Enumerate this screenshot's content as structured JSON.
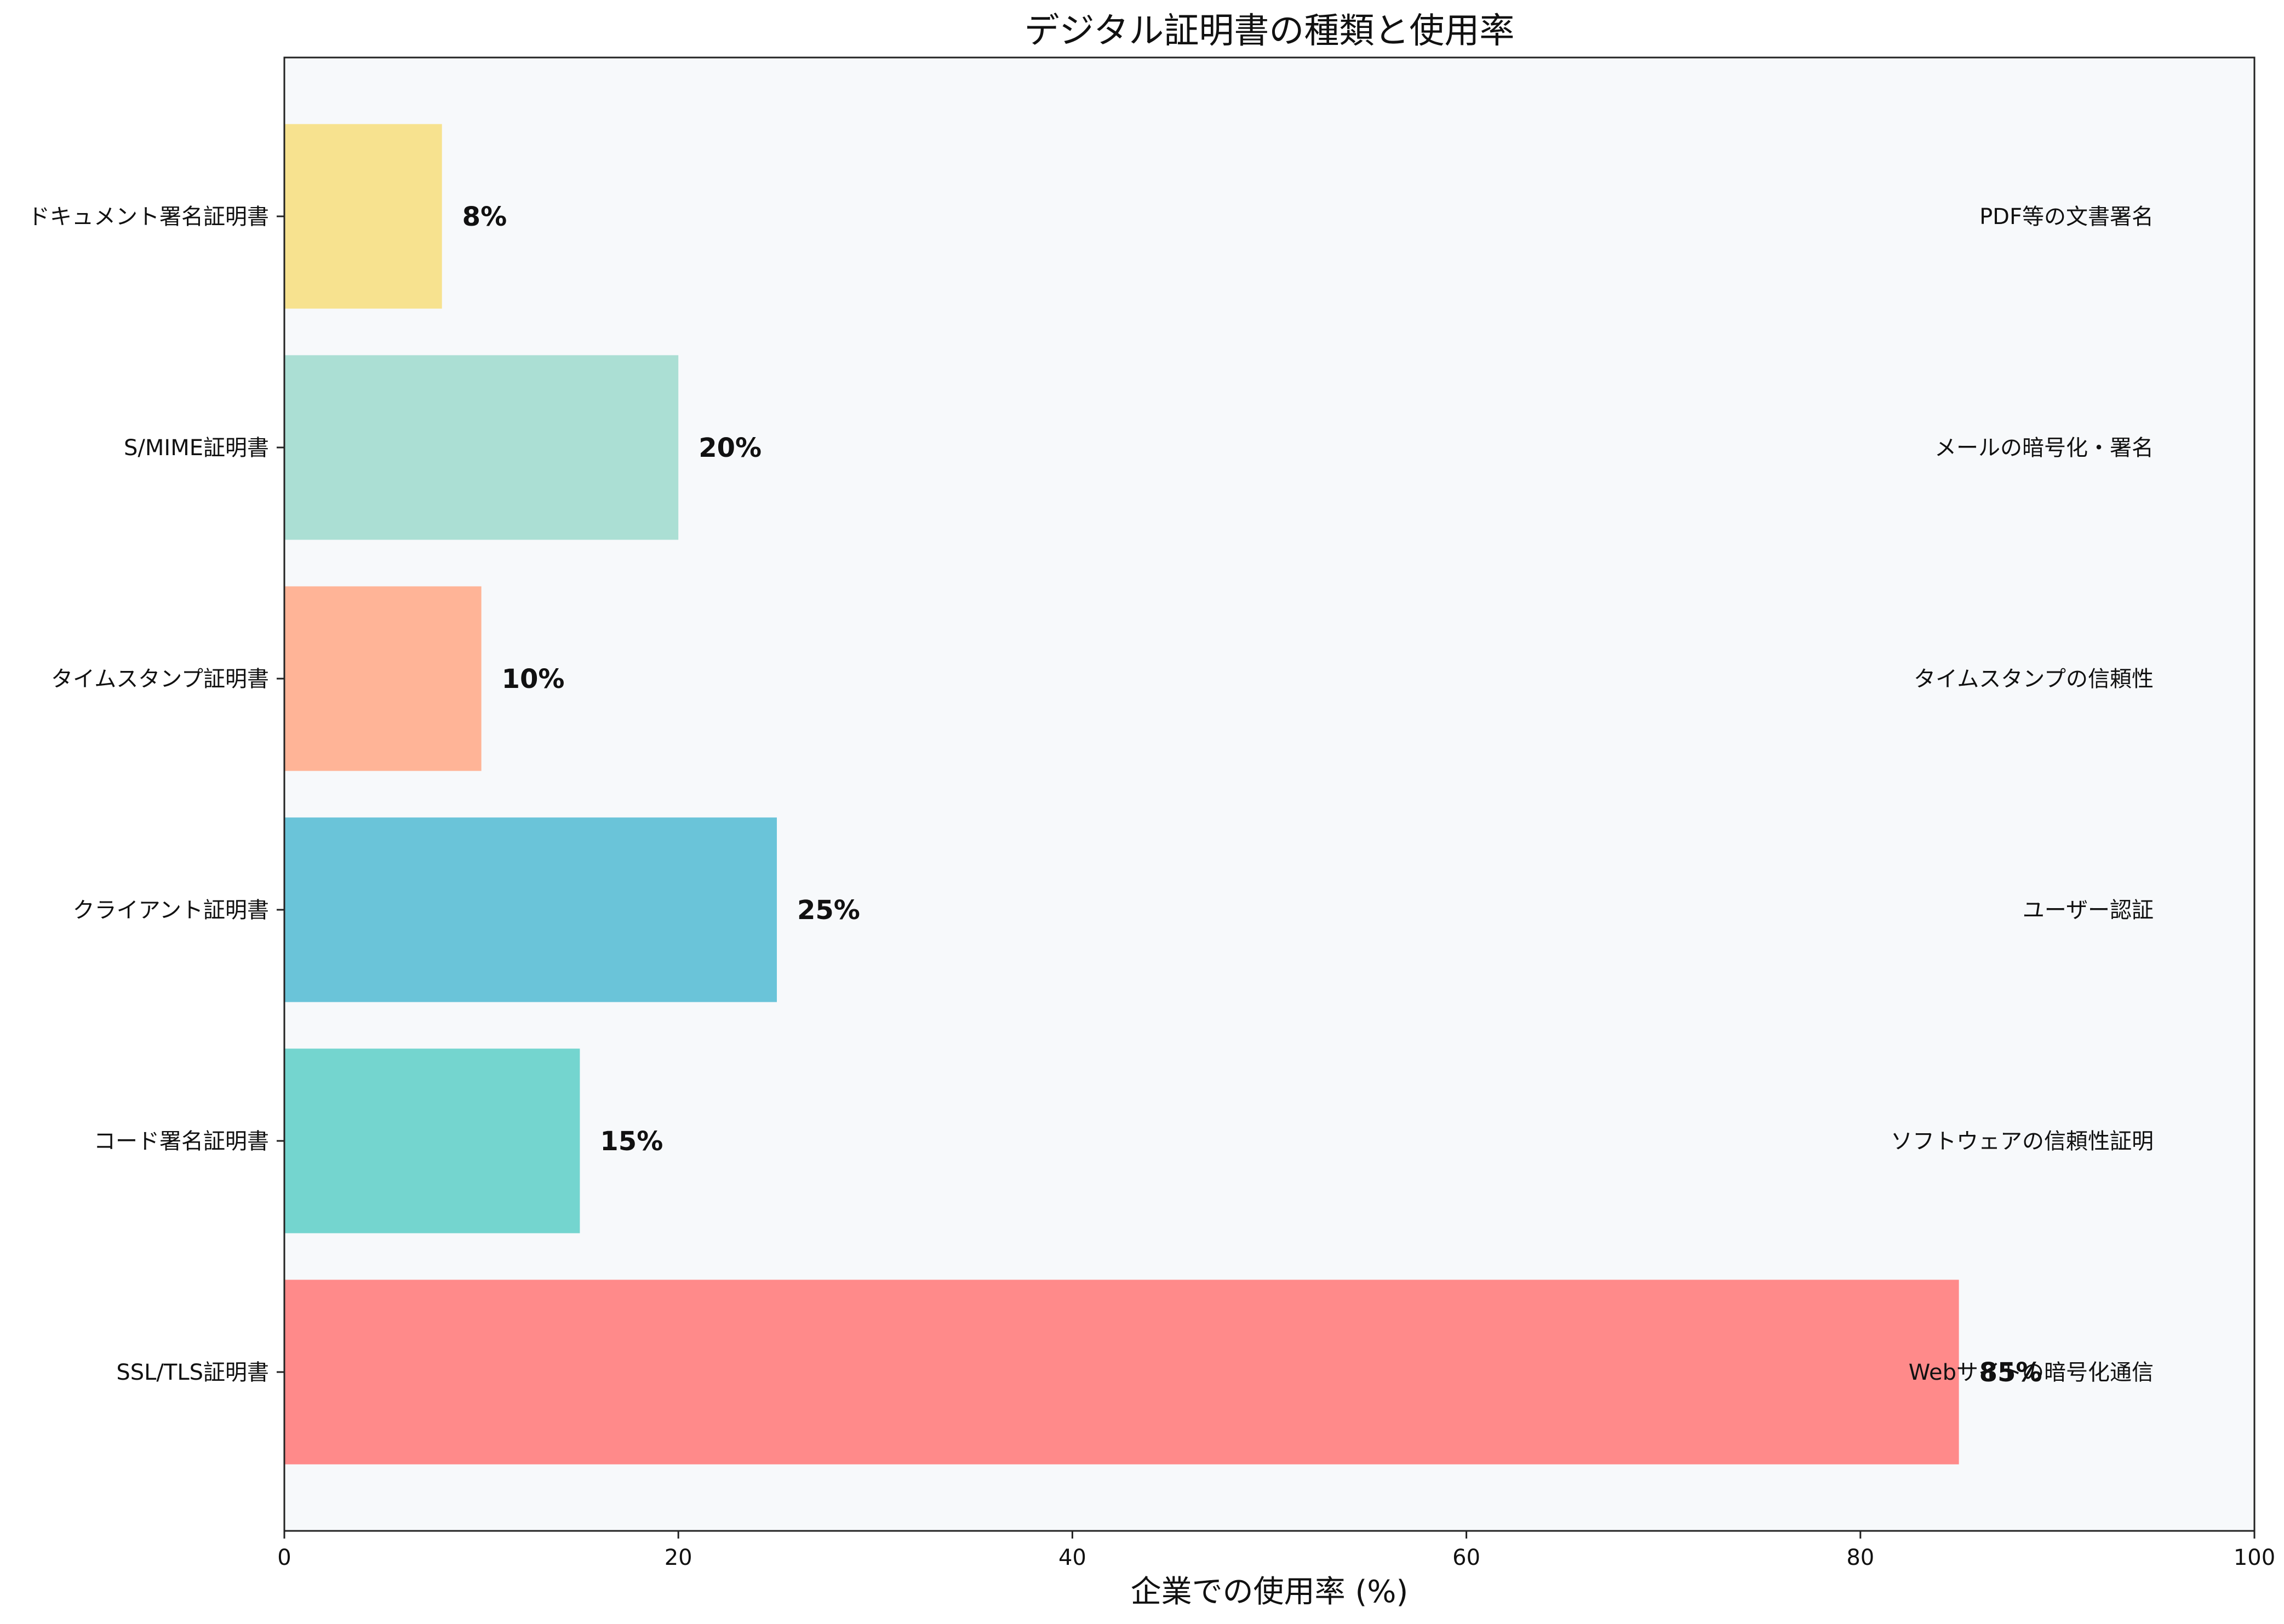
{
  "chart_data": {
    "type": "bar",
    "orientation": "horizontal",
    "title": "デジタル証明書の種類と使用率",
    "xlabel": "企業での使用率 (%)",
    "ylabel": "",
    "xlim": [
      0,
      100
    ],
    "xticks": [
      0,
      20,
      40,
      60,
      80,
      100
    ],
    "grid": false,
    "plot_background": "#f7f9fb",
    "categories": [
      "SSL/TLS証明書",
      "コード署名証明書",
      "クライアント証明書",
      "タイムスタンプ証明書",
      "S/MIME証明書",
      "ドキュメント署名証明書"
    ],
    "values": [
      85,
      15,
      25,
      10,
      20,
      8
    ],
    "value_labels": [
      "85%",
      "15%",
      "25%",
      "10%",
      "20%",
      "8%"
    ],
    "colors": [
      "#ff8a8a",
      "#74d5cf",
      "#6ac4d9",
      "#ffb497",
      "#abdfd4",
      "#f7e28f"
    ],
    "annotations": [
      "Webサイトの暗号化通信",
      "ソフトウェアの信頼性証明",
      "ユーザー認証",
      "タイムスタンプの信頼性",
      "メールの暗号化・署名",
      "PDF等の文書署名"
    ]
  }
}
